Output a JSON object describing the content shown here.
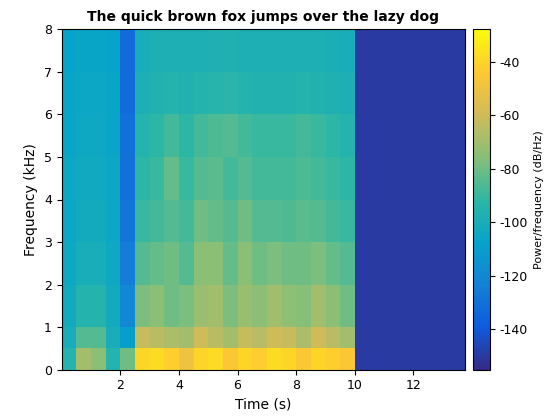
{
  "chart_data": {
    "type": "spectrogram",
    "title": "The quick brown fox jumps over the lazy dog",
    "x_label": "Time (s)",
    "y_label": "Frequency (kHz)",
    "xlim": [
      0,
      13.75
    ],
    "xticks": [
      2,
      4,
      6,
      8,
      10,
      12
    ],
    "ylim": [
      0,
      8
    ],
    "yticks": [
      0,
      1,
      2,
      3,
      4,
      5,
      6,
      7,
      8
    ],
    "time_edges": [
      0,
      0.5,
      1,
      1.5,
      2,
      2.5,
      3,
      3.5,
      4,
      4.5,
      5,
      5.5,
      6,
      6.5,
      7,
      7.5,
      8,
      8.5,
      9,
      9.5,
      10,
      10.5,
      11,
      11.5,
      12,
      12.5,
      13,
      13.5,
      14
    ],
    "frequency_edges": [
      0,
      0.5,
      1,
      2,
      3,
      4,
      5,
      6,
      7,
      8
    ],
    "power": [
      [
        -95,
        -70,
        -75,
        -95,
        -80,
        -40,
        -38,
        -42,
        -50,
        -40,
        -38,
        -45,
        -40,
        -42,
        -38,
        -40,
        -45,
        -40,
        -42,
        -45,
        -150,
        -150,
        -150,
        -150,
        -150,
        -150,
        -150,
        -150
      ],
      [
        -100,
        -85,
        -85,
        -100,
        -110,
        -62,
        -65,
        -68,
        -70,
        -60,
        -65,
        -70,
        -62,
        -65,
        -60,
        -62,
        -68,
        -60,
        -65,
        -70,
        -150,
        -150,
        -150,
        -150,
        -150,
        -150,
        -150,
        -150
      ],
      [
        -102,
        -95,
        -95,
        -102,
        -120,
        -78,
        -75,
        -80,
        -78,
        -72,
        -70,
        -78,
        -72,
        -75,
        -70,
        -74,
        -76,
        -70,
        -75,
        -80,
        -150,
        -150,
        -150,
        -150,
        -150,
        -150,
        -150,
        -150
      ],
      [
        -104,
        -100,
        -100,
        -104,
        -125,
        -85,
        -82,
        -80,
        -85,
        -75,
        -75,
        -82,
        -75,
        -80,
        -78,
        -80,
        -80,
        -78,
        -82,
        -85,
        -150,
        -150,
        -150,
        -150,
        -150,
        -150,
        -150,
        -150
      ],
      [
        -105,
        -102,
        -102,
        -105,
        -128,
        -90,
        -88,
        -85,
        -88,
        -80,
        -82,
        -85,
        -80,
        -85,
        -85,
        -86,
        -84,
        -85,
        -88,
        -90,
        -150,
        -150,
        -150,
        -150,
        -150,
        -150,
        -150,
        -150
      ],
      [
        -105,
        -103,
        -103,
        -105,
        -130,
        -92,
        -90,
        -82,
        -90,
        -85,
        -84,
        -88,
        -85,
        -88,
        -88,
        -88,
        -86,
        -88,
        -90,
        -92,
        -150,
        -150,
        -150,
        -150,
        -150,
        -150,
        -150,
        -150
      ],
      [
        -106,
        -104,
        -104,
        -106,
        -130,
        -95,
        -92,
        -88,
        -92,
        -88,
        -86,
        -85,
        -88,
        -90,
        -90,
        -90,
        -88,
        -90,
        -92,
        -95,
        -150,
        -150,
        -150,
        -150,
        -150,
        -150,
        -150,
        -150
      ],
      [
        -106,
        -105,
        -105,
        -106,
        -132,
        -98,
        -96,
        -95,
        -96,
        -95,
        -94,
        -93,
        -95,
        -96,
        -96,
        -96,
        -95,
        -96,
        -97,
        -98,
        -150,
        -150,
        -150,
        -150,
        -150,
        -150,
        -150,
        -150
      ],
      [
        -107,
        -106,
        -106,
        -107,
        -132,
        -100,
        -98,
        -98,
        -98,
        -98,
        -97,
        -97,
        -98,
        -98,
        -98,
        -98,
        -98,
        -98,
        -99,
        -100,
        -150,
        -150,
        -150,
        -150,
        -150,
        -150,
        -150,
        -150
      ]
    ],
    "colorbar_label": "Power/frequency (dB/Hz)",
    "colorbar_range": [
      -155,
      -28
    ],
    "colorbar_ticks": [
      -140,
      -120,
      -100,
      -80,
      -60,
      -40
    ]
  }
}
